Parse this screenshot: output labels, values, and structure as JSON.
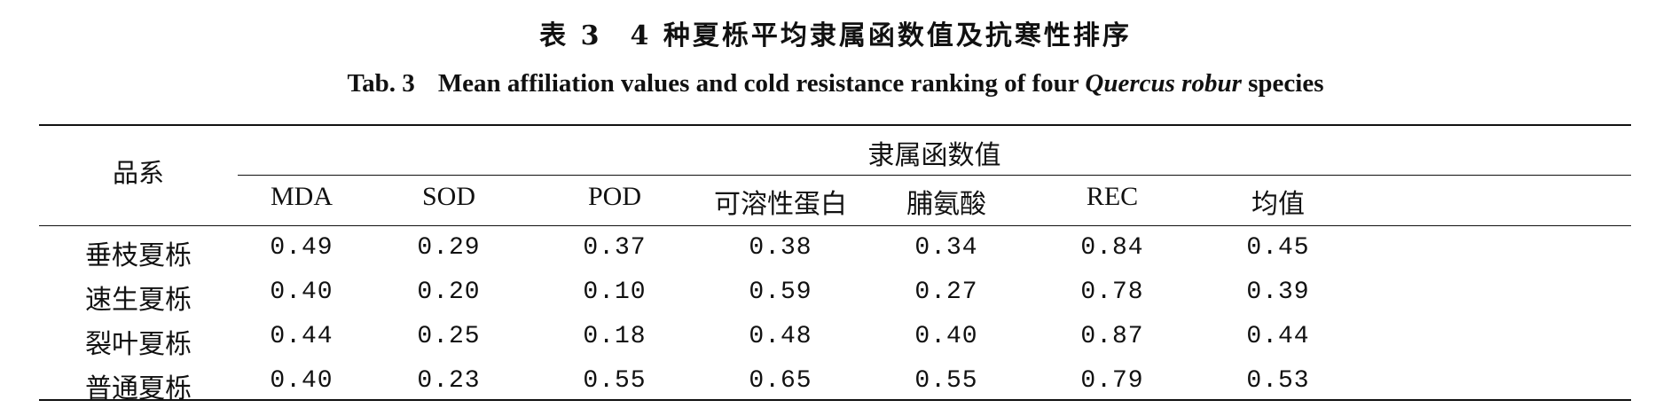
{
  "caption": {
    "zh_label": "表 3",
    "zh_title": "4 种夏栎平均隶属函数值及抗寒性排序",
    "en_label": "Tab. 3",
    "en_title_before": "Mean affiliation values and cold resistance ranking of four ",
    "en_title_species": "Quercus robur",
    "en_title_after": " species"
  },
  "table": {
    "stub_header": "品系",
    "group_header": "隶属函数值",
    "columns": [
      "MDA",
      "SOD",
      "POD",
      "可溶性蛋白",
      "脯氨酸",
      "REC",
      "均值"
    ],
    "rows": [
      {
        "label": "垂枝夏栎",
        "values": [
          "0.49",
          "0.29",
          "0.37",
          "0.38",
          "0.34",
          "0.84",
          "0.45"
        ]
      },
      {
        "label": "速生夏栎",
        "values": [
          "0.40",
          "0.20",
          "0.10",
          "0.59",
          "0.27",
          "0.78",
          "0.39"
        ]
      },
      {
        "label": "裂叶夏栎",
        "values": [
          "0.44",
          "0.25",
          "0.18",
          "0.48",
          "0.40",
          "0.87",
          "0.44"
        ]
      },
      {
        "label": "普通夏栎",
        "values": [
          "0.40",
          "0.23",
          "0.55",
          "0.65",
          "0.55",
          "0.79",
          "0.53"
        ]
      }
    ]
  }
}
